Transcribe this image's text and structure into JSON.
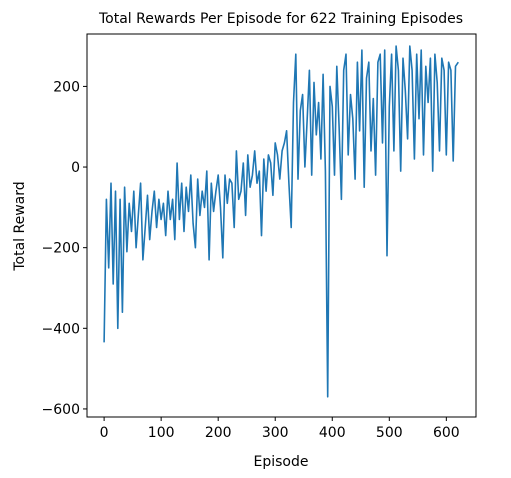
{
  "chart_data": {
    "type": "line",
    "title": "Total Rewards Per Episode for 622 Training Episodes",
    "xlabel": "Episode",
    "ylabel": "Total Reward",
    "xlim": [
      -30,
      652
    ],
    "ylim": [
      -620,
      330
    ],
    "x_ticks": [
      0,
      100,
      200,
      300,
      400,
      500,
      600
    ],
    "y_ticks": [
      -600,
      -400,
      -200,
      0,
      200
    ],
    "grid": false,
    "line_color": "#1f77b4",
    "x": [
      0,
      4,
      8,
      12,
      16,
      20,
      24,
      28,
      32,
      36,
      40,
      44,
      48,
      52,
      56,
      60,
      64,
      68,
      72,
      76,
      80,
      84,
      88,
      92,
      96,
      100,
      104,
      108,
      112,
      116,
      120,
      124,
      128,
      132,
      136,
      140,
      144,
      148,
      152,
      156,
      160,
      164,
      168,
      172,
      176,
      180,
      184,
      188,
      192,
      196,
      200,
      204,
      208,
      212,
      216,
      220,
      224,
      228,
      232,
      236,
      240,
      244,
      248,
      252,
      256,
      260,
      264,
      268,
      272,
      276,
      280,
      284,
      288,
      292,
      296,
      300,
      304,
      308,
      312,
      316,
      320,
      324,
      328,
      332,
      336,
      340,
      344,
      348,
      352,
      356,
      360,
      364,
      368,
      372,
      376,
      380,
      384,
      388,
      392,
      396,
      400,
      404,
      408,
      412,
      416,
      420,
      424,
      428,
      432,
      436,
      440,
      444,
      448,
      452,
      456,
      460,
      464,
      468,
      472,
      476,
      480,
      484,
      488,
      492,
      496,
      500,
      504,
      508,
      512,
      516,
      520,
      524,
      528,
      532,
      536,
      540,
      544,
      548,
      552,
      556,
      560,
      564,
      568,
      572,
      576,
      580,
      584,
      588,
      592,
      596,
      600,
      604,
      608,
      612,
      616,
      621
    ],
    "values": [
      -435,
      -80,
      -250,
      -40,
      -290,
      -60,
      -400,
      -80,
      -360,
      -50,
      -210,
      -90,
      -160,
      -60,
      -200,
      -120,
      -40,
      -230,
      -150,
      -70,
      -180,
      -110,
      -60,
      -150,
      -80,
      -130,
      -90,
      -170,
      -60,
      -130,
      -80,
      -180,
      10,
      -130,
      -40,
      -160,
      -50,
      -110,
      -20,
      -140,
      -200,
      -30,
      -120,
      -60,
      -100,
      -10,
      -230,
      -40,
      -110,
      -60,
      -20,
      -100,
      -225,
      -20,
      -90,
      -30,
      -40,
      -150,
      40,
      -80,
      -60,
      10,
      -120,
      30,
      -50,
      -20,
      40,
      -40,
      -10,
      -170,
      20,
      -60,
      30,
      10,
      -70,
      60,
      30,
      -30,
      40,
      60,
      90,
      -40,
      -150,
      160,
      280,
      -30,
      140,
      180,
      0,
      120,
      240,
      -20,
      210,
      80,
      160,
      20,
      230,
      -10,
      -570,
      200,
      150,
      -20,
      250,
      100,
      -80,
      240,
      280,
      30,
      180,
      120,
      -30,
      260,
      90,
      290,
      -50,
      220,
      260,
      40,
      170,
      -20,
      260,
      280,
      60,
      290,
      -220,
      150,
      280,
      40,
      300,
      240,
      -10,
      270,
      190,
      70,
      300,
      240,
      20,
      280,
      120,
      290,
      30,
      250,
      160,
      270,
      -10,
      280,
      210,
      40,
      270,
      240,
      30,
      260,
      240,
      15,
      250,
      260
    ]
  }
}
